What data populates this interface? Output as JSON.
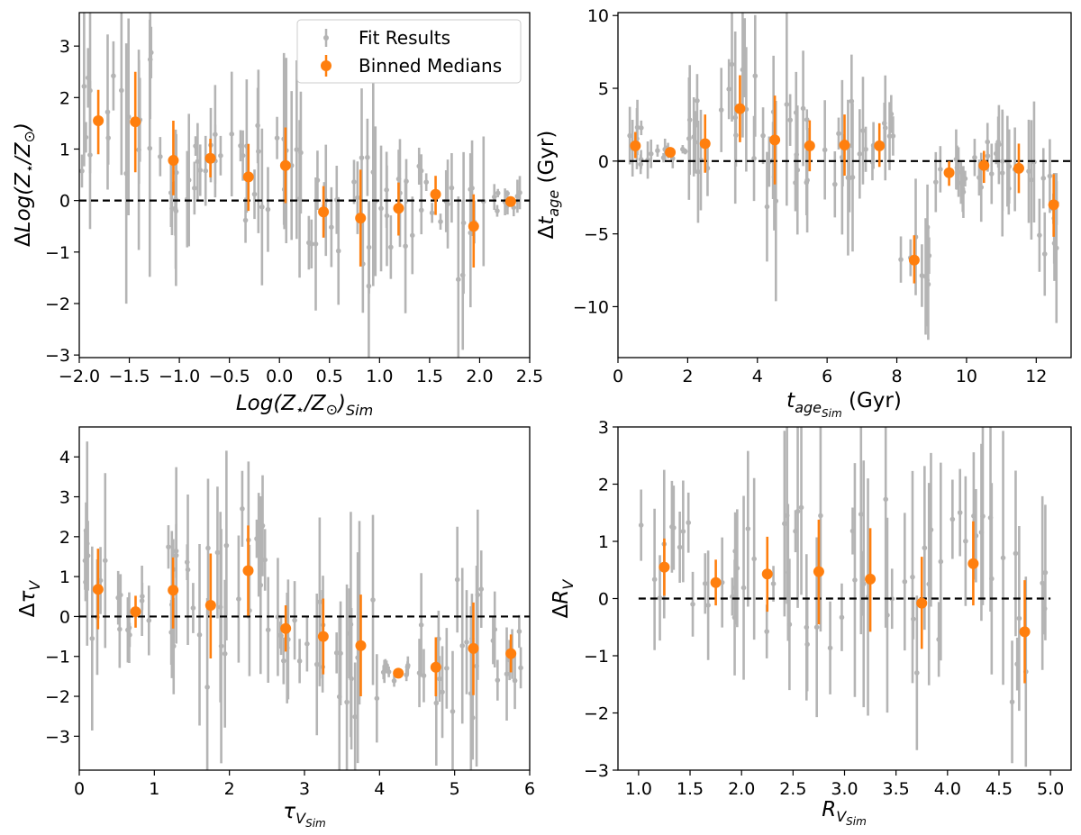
{
  "colors": {
    "fit": "#b4b4b4",
    "median": "#ff7f0e",
    "zero_line": "#000000"
  },
  "legend": {
    "fit_label": "Fit Results",
    "median_label": "Binned Medians"
  },
  "chart_data": [
    {
      "type": "scatter",
      "id": "metallicity",
      "ylabel": "ΔLog(Z⋆/Z⊙)",
      "xlabel": "Log(Z⋆/Z⊙)Sim",
      "xlim": [
        -2.0,
        2.5
      ],
      "ylim": [
        -3.05,
        3.65
      ],
      "xticks": [
        -2.0,
        -1.5,
        -1.0,
        -0.5,
        0.0,
        0.5,
        1.0,
        1.5,
        2.0,
        2.5
      ],
      "xtick_labels": [
        "−2.0",
        "−1.5",
        "−1.0",
        "−0.5",
        "0.0",
        "0.5",
        "1.0",
        "1.5",
        "2.0",
        "2.5"
      ],
      "yticks": [
        -3,
        -2,
        -1,
        0,
        1,
        2,
        3
      ],
      "ytick_labels": [
        "−3",
        "−2",
        "−1",
        "0",
        "1",
        "2",
        "3"
      ],
      "zero_line": 0,
      "legend_position": "top-right",
      "medians": [
        {
          "x": -1.81,
          "y": 1.55,
          "lo": 0.9,
          "hi": 2.15
        },
        {
          "x": -1.44,
          "y": 1.53,
          "lo": 0.55,
          "hi": 2.5
        },
        {
          "x": -1.06,
          "y": 0.78,
          "lo": 0.1,
          "hi": 1.55
        },
        {
          "x": -0.69,
          "y": 0.82,
          "lo": 0.45,
          "hi": 1.2
        },
        {
          "x": -0.31,
          "y": 0.46,
          "lo": -0.2,
          "hi": 1.1
        },
        {
          "x": 0.06,
          "y": 0.68,
          "lo": -0.05,
          "hi": 1.42
        },
        {
          "x": 0.44,
          "y": -0.22,
          "lo": -0.72,
          "hi": 0.28
        },
        {
          "x": 0.81,
          "y": -0.34,
          "lo": -1.28,
          "hi": 0.6
        },
        {
          "x": 1.19,
          "y": -0.15,
          "lo": -0.68,
          "hi": 0.35
        },
        {
          "x": 1.56,
          "y": 0.12,
          "lo": -0.28,
          "hi": 0.48
        },
        {
          "x": 1.94,
          "y": -0.5,
          "lo": -1.3,
          "hi": 0.12
        },
        {
          "x": 2.31,
          "y": -0.02,
          "lo": -0.12,
          "hi": 0.08
        }
      ]
    },
    {
      "type": "scatter",
      "id": "age",
      "ylabel": "Δt_age (Gyr)",
      "xlabel": "t_ageSim (Gyr)",
      "xlim": [
        0,
        13
      ],
      "ylim": [
        -13.5,
        10.2
      ],
      "xticks": [
        0,
        2,
        4,
        6,
        8,
        10,
        12
      ],
      "xtick_labels": [
        "0",
        "2",
        "4",
        "6",
        "8",
        "10",
        "12"
      ],
      "yticks": [
        -10,
        -5,
        0,
        5,
        10
      ],
      "ytick_labels": [
        "−10",
        "−5",
        "0",
        "5",
        "10"
      ],
      "zero_line": 0,
      "medians": [
        {
          "x": 0.5,
          "y": 1.05,
          "lo": 0.2,
          "hi": 2.0
        },
        {
          "x": 1.5,
          "y": 0.6,
          "lo": 0.3,
          "hi": 0.9
        },
        {
          "x": 2.5,
          "y": 1.2,
          "lo": -0.8,
          "hi": 3.2
        },
        {
          "x": 3.5,
          "y": 3.6,
          "lo": 1.3,
          "hi": 5.9
        },
        {
          "x": 4.5,
          "y": 1.45,
          "lo": -1.6,
          "hi": 4.5
        },
        {
          "x": 5.5,
          "y": 1.05,
          "lo": -0.7,
          "hi": 2.8
        },
        {
          "x": 6.5,
          "y": 1.1,
          "lo": -1.0,
          "hi": 3.2
        },
        {
          "x": 7.5,
          "y": 1.05,
          "lo": -0.4,
          "hi": 2.6
        },
        {
          "x": 8.5,
          "y": -6.8,
          "lo": -8.4,
          "hi": -5.1
        },
        {
          "x": 9.5,
          "y": -0.8,
          "lo": -1.7,
          "hi": 0.0
        },
        {
          "x": 10.5,
          "y": -0.3,
          "lo": -1.5,
          "hi": 0.7
        },
        {
          "x": 11.5,
          "y": -0.5,
          "lo": -2.2,
          "hi": 1.2
        },
        {
          "x": 12.5,
          "y": -3.0,
          "lo": -5.2,
          "hi": -0.9
        }
      ]
    },
    {
      "type": "scatter",
      "id": "tau",
      "ylabel": "ΔτV",
      "xlabel": "τVSim",
      "xlim": [
        0,
        6
      ],
      "ylim": [
        -3.85,
        4.75
      ],
      "xticks": [
        0,
        1,
        2,
        3,
        4,
        5,
        6
      ],
      "xtick_labels": [
        "0",
        "1",
        "2",
        "3",
        "4",
        "5",
        "6"
      ],
      "yticks": [
        -3,
        -2,
        -1,
        0,
        1,
        2,
        3,
        4
      ],
      "ytick_labels": [
        "−3",
        "−2",
        "−1",
        "0",
        "1",
        "2",
        "3",
        "4"
      ],
      "zero_line": 0,
      "medians": [
        {
          "x": 0.25,
          "y": 0.68,
          "lo": -0.32,
          "hi": 1.7
        },
        {
          "x": 0.75,
          "y": 0.12,
          "lo": -0.28,
          "hi": 0.52
        },
        {
          "x": 1.25,
          "y": 0.66,
          "lo": -0.3,
          "hi": 1.48
        },
        {
          "x": 1.75,
          "y": 0.28,
          "lo": -1.05,
          "hi": 1.58
        },
        {
          "x": 2.25,
          "y": 1.15,
          "lo": 0.02,
          "hi": 2.28
        },
        {
          "x": 2.75,
          "y": -0.3,
          "lo": -0.88,
          "hi": 0.28
        },
        {
          "x": 3.25,
          "y": -0.5,
          "lo": -1.45,
          "hi": 0.45
        },
        {
          "x": 3.75,
          "y": -0.73,
          "lo": -2.0,
          "hi": 0.55
        },
        {
          "x": 4.25,
          "y": -1.42,
          "lo": -1.42,
          "hi": -1.42
        },
        {
          "x": 4.75,
          "y": -1.27,
          "lo": -2.0,
          "hi": -0.52
        },
        {
          "x": 5.25,
          "y": -0.8,
          "lo": -1.97,
          "hi": 0.35
        },
        {
          "x": 5.75,
          "y": -0.93,
          "lo": -1.4,
          "hi": -0.45
        }
      ]
    },
    {
      "type": "scatter",
      "id": "rv",
      "ylabel": "ΔRV",
      "xlabel": "RVSim",
      "xlim": [
        0.8,
        5.2
      ],
      "ylim": [
        -3.0,
        3.0
      ],
      "xticks": [
        1.0,
        1.5,
        2.0,
        2.5,
        3.0,
        3.5,
        4.0,
        4.5,
        5.0
      ],
      "xtick_labels": [
        "1.0",
        "1.5",
        "2.0",
        "2.5",
        "3.0",
        "3.5",
        "4.0",
        "4.5",
        "5.0"
      ],
      "yticks": [
        -3,
        -2,
        -1,
        0,
        1,
        2,
        3
      ],
      "ytick_labels": [
        "−3",
        "−2",
        "−1",
        "0",
        "1",
        "2",
        "3"
      ],
      "zero_line": 0,
      "zero_line_range": [
        1.0,
        5.0
      ],
      "medians": [
        {
          "x": 1.25,
          "y": 0.55,
          "lo": 0.05,
          "hi": 1.05
        },
        {
          "x": 1.75,
          "y": 0.28,
          "lo": -0.12,
          "hi": 0.68
        },
        {
          "x": 2.25,
          "y": 0.43,
          "lo": -0.23,
          "hi": 1.08
        },
        {
          "x": 2.75,
          "y": 0.47,
          "lo": -0.45,
          "hi": 1.38
        },
        {
          "x": 3.25,
          "y": 0.34,
          "lo": -0.58,
          "hi": 1.23
        },
        {
          "x": 3.75,
          "y": -0.08,
          "lo": -0.88,
          "hi": 0.73
        },
        {
          "x": 4.25,
          "y": 0.61,
          "lo": -0.12,
          "hi": 1.35
        },
        {
          "x": 4.75,
          "y": -0.58,
          "lo": -1.48,
          "hi": 0.32
        }
      ]
    }
  ]
}
